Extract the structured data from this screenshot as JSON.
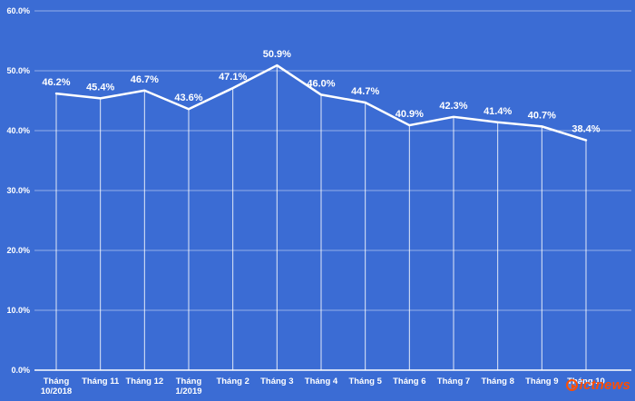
{
  "chart_data": {
    "type": "line",
    "title": "",
    "categories": [
      "Tháng\n10/2018",
      "Tháng 11",
      "Tháng 12",
      "Tháng\n1/2019",
      "Tháng 2",
      "Tháng 3",
      "Tháng 4",
      "Tháng 5",
      "Tháng 6",
      "Tháng 7",
      "Tháng 8",
      "Tháng 9",
      "Tháng 10"
    ],
    "values": [
      46.2,
      45.4,
      46.7,
      43.6,
      47.1,
      50.9,
      46.0,
      44.7,
      40.9,
      42.3,
      41.4,
      40.7,
      38.4
    ],
    "data_labels": [
      "46.2%",
      "45.4%",
      "46.7%",
      "43.6%",
      "47.1%",
      "50.9%",
      "46.0%",
      "44.7%",
      "40.9%",
      "42.3%",
      "41.4%",
      "40.7%",
      "38.4%"
    ],
    "xlabel": "",
    "ylabel": "",
    "ylim": [
      0,
      60
    ],
    "yticks": [
      0,
      10,
      20,
      30,
      40,
      50,
      60
    ],
    "ytick_labels": [
      "0.0%",
      "10.0%",
      "20.0%",
      "30.0%",
      "40.0%",
      "50.0%",
      "60.0%"
    ],
    "grid": true,
    "legend": "none",
    "colors": {
      "background": "#3b6cd4",
      "line": "#ffffff",
      "gridline": "rgba(255,255,255,0.45)",
      "drop_line": "rgba(255,255,255,0.85)",
      "label": "#ffffff",
      "watermark": "#ff4d00"
    }
  },
  "watermark": {
    "text": "ictnews"
  }
}
